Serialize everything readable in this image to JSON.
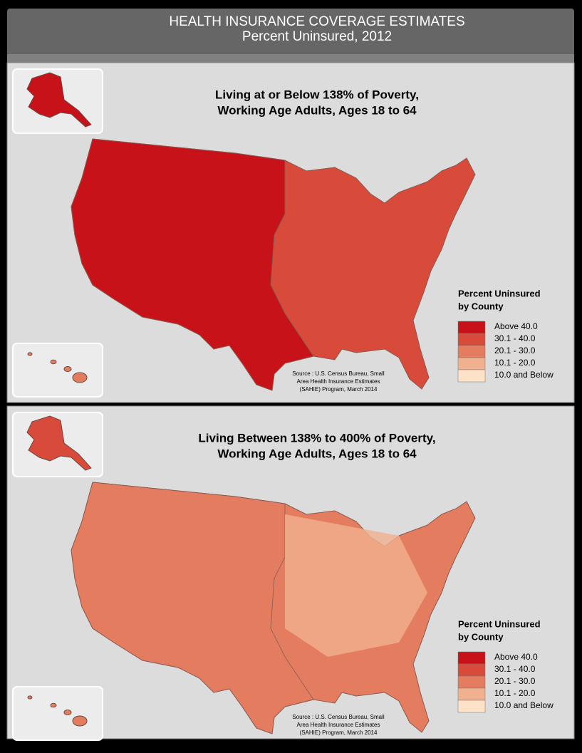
{
  "header": {
    "title": "HEALTH INSURANCE COVERAGE ESTIMATES",
    "subtitle": "Percent Uninsured, 2012"
  },
  "panels": [
    {
      "title_lines": [
        "Living at or Below 138% of Poverty,",
        "Working Age Adults, Ages 18 to 64"
      ],
      "legend": {
        "title_lines": [
          "Percent Uninsured",
          "by County"
        ],
        "items": [
          {
            "label": "Above 40.0",
            "color": "#c8121a"
          },
          {
            "label": "30.1 - 40.0",
            "color": "#d84a3a"
          },
          {
            "label": "20.1 - 30.0",
            "color": "#e47d60"
          },
          {
            "label": "10.1 - 20.0",
            "color": "#f1b08e"
          },
          {
            "label": "10.0 and Below",
            "color": "#fde2c8"
          }
        ]
      },
      "source_lines": [
        "Source : U.S. Census Bureau, Small",
        "Area Health Insurance Estimates",
        "(SAHIE) Program, March 2014"
      ]
    },
    {
      "title_lines": [
        "Living Between 138% to 400% of Poverty,",
        "Working Age Adults, Ages 18 to 64"
      ],
      "legend": {
        "title_lines": [
          "Percent Uninsured",
          "by County"
        ],
        "items": [
          {
            "label": "Above 40.0",
            "color": "#c8121a"
          },
          {
            "label": "30.1 - 40.0",
            "color": "#d84a3a"
          },
          {
            "label": "20.1 - 30.0",
            "color": "#e47d60"
          },
          {
            "label": "10.1 - 20.0",
            "color": "#f1b08e"
          },
          {
            "label": "10.0 and Below",
            "color": "#fde2c8"
          }
        ]
      },
      "source_lines": [
        "Source : U.S. Census Bureau, Small",
        "Area Health Insurance Estimates",
        "(SAHIE) Program, March 2014"
      ]
    }
  ]
}
